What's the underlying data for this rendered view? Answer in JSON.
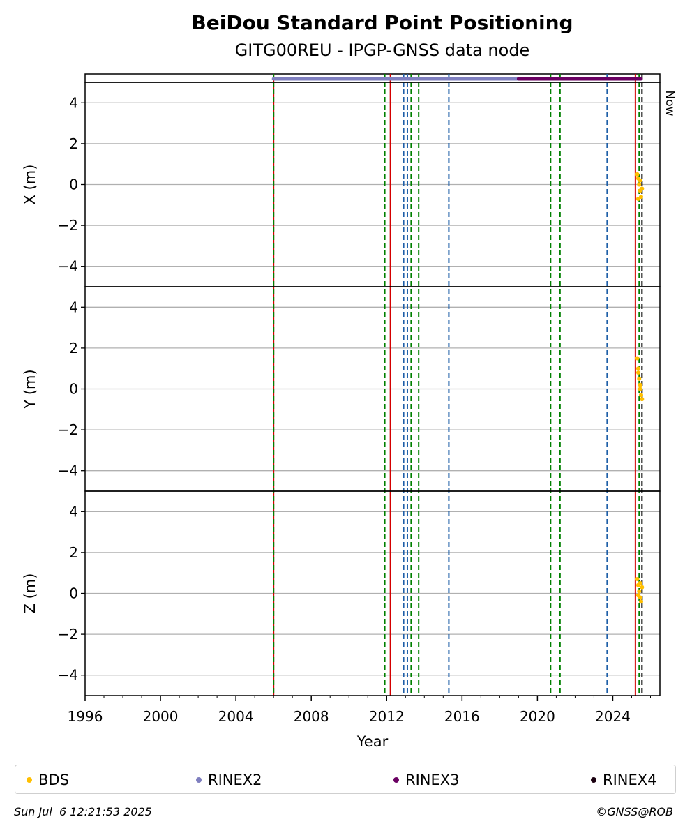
{
  "chart_data": {
    "type": "scatter",
    "title": "BeiDou Standard Point Positioning",
    "subtitle": "GITG00REU - IPGP-GNSS data node",
    "xlabel": "Year",
    "x_range": [
      1996,
      2026.5
    ],
    "x_ticks": [
      "1996",
      "2000",
      "2004",
      "2008",
      "2012",
      "2016",
      "2020",
      "2024"
    ],
    "y_range": [
      -5,
      5
    ],
    "y_ticks": [
      "−4",
      "−2",
      "0",
      "2",
      "4"
    ],
    "grid": true,
    "panels": [
      {
        "ylabel": "X (m)",
        "series": [
          {
            "name": "BDS",
            "color": "#ffbf00",
            "x": [
              2025.3,
              2025.35,
              2025.4,
              2025.45,
              2025.5,
              2025.55,
              2025.35,
              2025.45
            ],
            "y": [
              0.5,
              0.3,
              0.0,
              -0.3,
              -0.6,
              -0.2,
              -0.7,
              0.2
            ]
          }
        ]
      },
      {
        "ylabel": "Y (m)",
        "series": [
          {
            "name": "BDS",
            "color": "#ffbf00",
            "x": [
              2025.3,
              2025.35,
              2025.4,
              2025.45,
              2025.5,
              2025.55,
              2025.35,
              2025.45
            ],
            "y": [
              1.5,
              1.0,
              0.5,
              0.0,
              -0.3,
              -0.5,
              0.8,
              0.2
            ]
          }
        ]
      },
      {
        "ylabel": "Z (m)",
        "series": [
          {
            "name": "BDS",
            "color": "#ffbf00",
            "x": [
              2025.3,
              2025.35,
              2025.4,
              2025.45,
              2025.5,
              2025.55,
              2025.35,
              2025.45
            ],
            "y": [
              0.7,
              0.4,
              0.1,
              -0.2,
              -0.4,
              0.3,
              -0.1,
              0.5
            ]
          }
        ]
      }
    ],
    "data_bars": [
      {
        "name": "RINEX2",
        "color": "#7f7fbf",
        "x_start": 2006.0,
        "x_end": 2025.4
      },
      {
        "name": "RINEX3",
        "color": "#6a0062",
        "x_start": 2019.0,
        "x_end": 2025.5
      }
    ],
    "vertical_lines": [
      {
        "x": 2006.0,
        "color": "#d40000",
        "style": "solid"
      },
      {
        "x": 2006.0,
        "color": "#008000",
        "style": "dashed"
      },
      {
        "x": 2011.9,
        "color": "#008000",
        "style": "dashed"
      },
      {
        "x": 2012.2,
        "color": "#d40000",
        "style": "solid"
      },
      {
        "x": 2012.9,
        "color": "#1f5fa8",
        "style": "dashed"
      },
      {
        "x": 2013.1,
        "color": "#1f5fa8",
        "style": "dashed"
      },
      {
        "x": 2013.3,
        "color": "#008000",
        "style": "dashed"
      },
      {
        "x": 2013.7,
        "color": "#008000",
        "style": "dashed"
      },
      {
        "x": 2015.3,
        "color": "#1f5fa8",
        "style": "dashed"
      },
      {
        "x": 2020.7,
        "color": "#008000",
        "style": "dashed"
      },
      {
        "x": 2021.2,
        "color": "#008000",
        "style": "dashed"
      },
      {
        "x": 2023.7,
        "color": "#1f5fa8",
        "style": "dashed"
      },
      {
        "x": 2025.2,
        "color": "#d40000",
        "style": "solid"
      },
      {
        "x": 2025.4,
        "color": "#008000",
        "style": "dashed"
      },
      {
        "x": 2025.55,
        "color": "#000000",
        "style": "dashed"
      }
    ],
    "now_label": "Now",
    "legend": [
      {
        "name": "BDS",
        "color": "#ffbf00"
      },
      {
        "name": "RINEX2",
        "color": "#7f7fbf"
      },
      {
        "name": "RINEX3",
        "color": "#6a0062"
      },
      {
        "name": "RINEX4",
        "color": "#1a0010"
      }
    ],
    "legend_position": "bottom"
  },
  "footer": {
    "timestamp": "Sun Jul  6 12:21:53 2025",
    "copyright": "©GNSS@ROB"
  }
}
